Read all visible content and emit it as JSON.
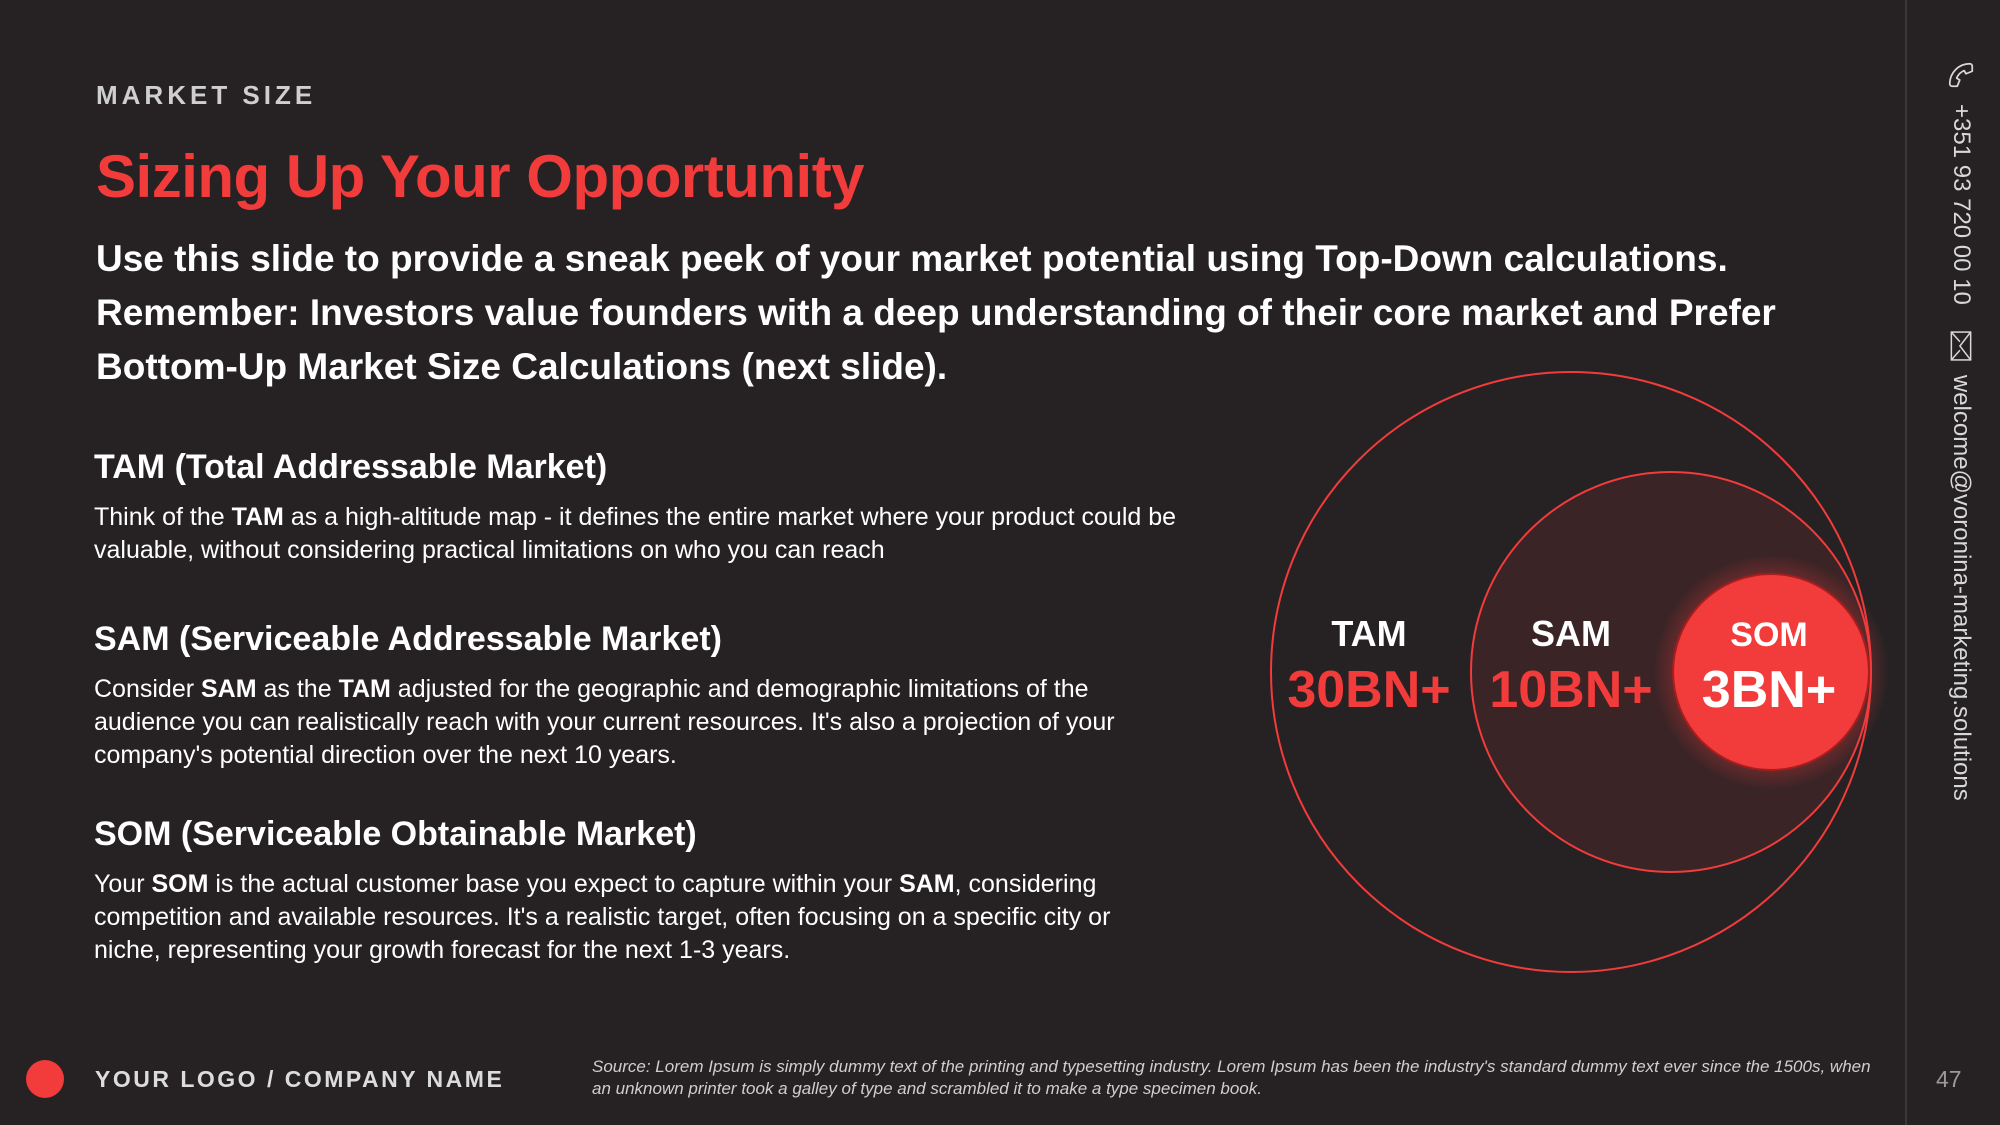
{
  "header": {
    "eyebrow": "MARKET SIZE",
    "title": "Sizing Up Your Opportunity",
    "intro": "Use this slide to provide a sneak peek of your market potential using Top-Down calculations. Remember: Investors value founders with a deep understanding of their core market and Prefer Bottom-Up Market Size Calculations (next slide)."
  },
  "sections": {
    "tam": {
      "heading": "TAM (Total Addressable Market)",
      "t1": "Think of the ",
      "b1": "TAM",
      "t2": " as a high-altitude map - it defines the entire market where your product could be valuable, without considering practical limitations on who you can reach"
    },
    "sam": {
      "heading": "SAM (Serviceable Addressable Market)",
      "t1": "Consider ",
      "b1": "SAM",
      "t2": " as the ",
      "b2": "TAM",
      "t3": " adjusted for the geographic and demographic limitations of the audience you can realistically reach with your current resources. It's also a projection of your company's potential direction over the next 10 years."
    },
    "som": {
      "heading": "SOM (Serviceable Obtainable Market)",
      "t1": "Your ",
      "b1": "SOM",
      "t2": " is the actual customer base you expect to capture within your ",
      "b2": "SAM",
      "t3": ", considering competition and available resources. It's a realistic target, often focusing on a specific city or niche, representing your growth forecast for the next 1-3 years."
    }
  },
  "diagram": {
    "tam": {
      "label": "TAM",
      "value": "30BN+"
    },
    "sam": {
      "label": "SAM",
      "value": "10BN+"
    },
    "som": {
      "label": "SOM",
      "value": "3BN+"
    },
    "colors": {
      "accent": "#f23b3b",
      "sam_fill": "#3a2426",
      "som_fill": "#f23b3b"
    }
  },
  "contact": {
    "phone_icon": "phone-icon",
    "phone": "+351 93 720 00 10",
    "email_icon": "envelope-icon",
    "email": "welcome@voronina-marketing.solutions"
  },
  "footer": {
    "logo": "YOUR LOGO / COMPANY NAME",
    "source": "Source: Lorem Ipsum is simply dummy text of the printing and typesetting industry. Lorem Ipsum has been the industry's standard dummy text ever since the 1500s, when an unknown printer took a galley of type and scrambled it to make a type specimen book.",
    "page": "47"
  }
}
